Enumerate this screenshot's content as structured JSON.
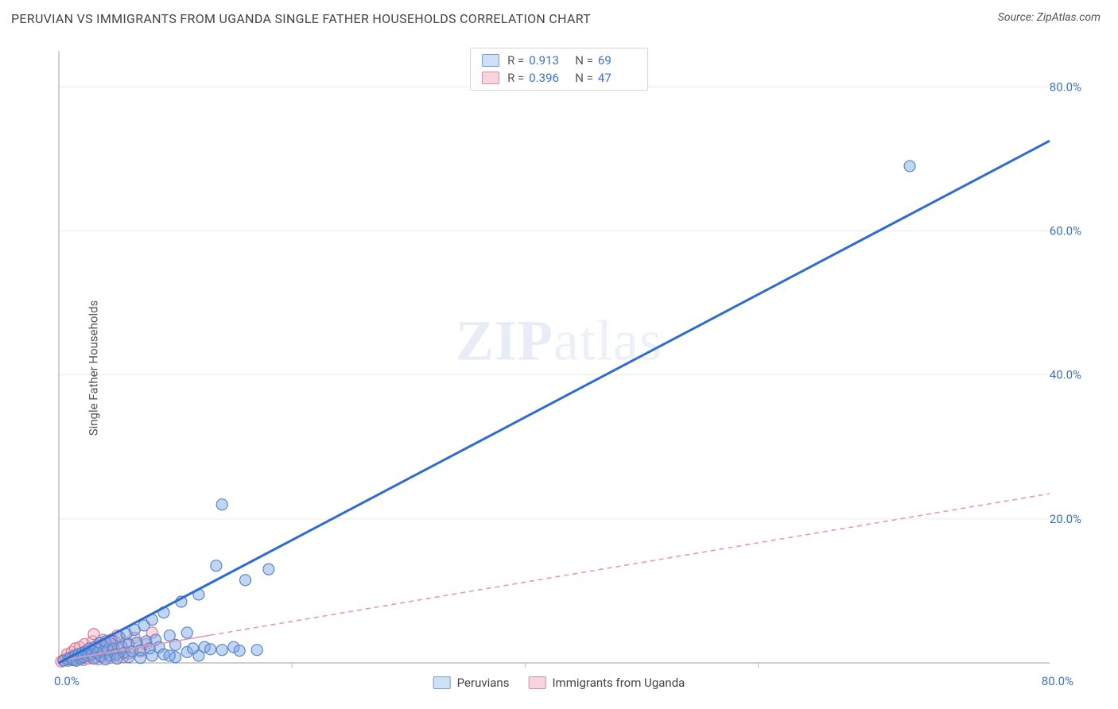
{
  "title": "PERUVIAN VS IMMIGRANTS FROM UGANDA SINGLE FATHER HOUSEHOLDS CORRELATION CHART",
  "source_prefix": "Source: ",
  "source_name": "ZipAtlas.com",
  "ylabel": "Single Father Households",
  "watermark_a": "ZIP",
  "watermark_b": "atlas",
  "chart": {
    "type": "scatter",
    "background_color": "#ffffff",
    "plot_border_color": "#d9d9d9",
    "grid_color": "#ececec",
    "axis_text_color": "#3a6fd8",
    "xlim": [
      0,
      85
    ],
    "ylim": [
      0,
      85
    ],
    "y_ticks": [
      20,
      40,
      60,
      80
    ],
    "y_tick_labels": [
      "20.0%",
      "40.0%",
      "60.0%",
      "80.0%"
    ],
    "x_origin_label": "0.0%",
    "x_max_label": "80.0%",
    "x_inner_ticks": [
      20,
      40,
      60
    ],
    "marker_radius": 7,
    "marker_stroke_width": 1.2,
    "series": [
      {
        "name": "Peruvians",
        "color_fill": "rgba(120,165,230,0.45)",
        "color_stroke": "#5a86c9",
        "swatch_fill": "#cfe0f7",
        "swatch_stroke": "#6f9bd8",
        "r_label": "R =",
        "r_value": "0.913",
        "n_label": "N =",
        "n_value": "69",
        "trend": {
          "x1": 0,
          "y1": 0,
          "x2": 85,
          "y2": 72.5,
          "stroke": "#2f6bd0",
          "width": 3,
          "dash": ""
        },
        "points": [
          [
            0.4,
            0.3
          ],
          [
            0.8,
            0.5
          ],
          [
            1.0,
            0.7
          ],
          [
            1.2,
            0.4
          ],
          [
            1.4,
            1.0
          ],
          [
            1.5,
            0.3
          ],
          [
            1.7,
            1.2
          ],
          [
            1.9,
            0.6
          ],
          [
            2.0,
            1.4
          ],
          [
            2.1,
            0.8
          ],
          [
            2.3,
            1.6
          ],
          [
            2.5,
            1.0
          ],
          [
            2.6,
            2.0
          ],
          [
            2.8,
            1.2
          ],
          [
            3.0,
            0.6
          ],
          [
            3.1,
            2.2
          ],
          [
            3.3,
            1.4
          ],
          [
            3.5,
            2.8
          ],
          [
            3.6,
            0.9
          ],
          [
            3.8,
            1.6
          ],
          [
            4.0,
            3.0
          ],
          [
            4.0,
            0.5
          ],
          [
            4.2,
            1.8
          ],
          [
            4.4,
            1.0
          ],
          [
            4.5,
            3.2
          ],
          [
            4.7,
            2.0
          ],
          [
            4.9,
            1.2
          ],
          [
            5.0,
            0.6
          ],
          [
            5.2,
            3.6
          ],
          [
            5.4,
            2.2
          ],
          [
            5.6,
            1.4
          ],
          [
            5.8,
            4.0
          ],
          [
            6.0,
            0.8
          ],
          [
            6.0,
            2.6
          ],
          [
            6.3,
            1.6
          ],
          [
            6.5,
            4.6
          ],
          [
            6.7,
            2.8
          ],
          [
            7.0,
            1.8
          ],
          [
            7.0,
            0.7
          ],
          [
            7.3,
            5.2
          ],
          [
            7.5,
            3.0
          ],
          [
            7.8,
            2.0
          ],
          [
            8.0,
            6.0
          ],
          [
            8.0,
            1.0
          ],
          [
            8.3,
            3.2
          ],
          [
            8.6,
            2.2
          ],
          [
            9.0,
            7.0
          ],
          [
            9.0,
            1.2
          ],
          [
            9.5,
            3.8
          ],
          [
            10.0,
            2.5
          ],
          [
            10.0,
            0.8
          ],
          [
            10.5,
            8.5
          ],
          [
            11.0,
            1.5
          ],
          [
            11.0,
            4.2
          ],
          [
            11.5,
            2.0
          ],
          [
            12.0,
            1.0
          ],
          [
            12.0,
            9.5
          ],
          [
            12.5,
            2.2
          ],
          [
            13.0,
            1.9
          ],
          [
            13.5,
            13.5
          ],
          [
            14.0,
            1.8
          ],
          [
            15.0,
            2.2
          ],
          [
            15.5,
            1.7
          ],
          [
            16.0,
            11.5
          ],
          [
            17.0,
            1.8
          ],
          [
            18.0,
            13.0
          ],
          [
            14.0,
            22.0
          ],
          [
            73.0,
            69.0
          ],
          [
            9.5,
            1.0
          ]
        ]
      },
      {
        "name": "Immigrants from Uganda",
        "color_fill": "rgba(245,170,190,0.45)",
        "color_stroke": "#d87a9a",
        "swatch_fill": "#f7d5de",
        "swatch_stroke": "#d98aa2",
        "r_label": "R =",
        "r_value": "0.396",
        "n_label": "N =",
        "n_value": "47",
        "trend": {
          "x1": 0,
          "y1": 0.3,
          "x2": 85,
          "y2": 23.5,
          "stroke": "#e59ab0",
          "width": 1.6,
          "dash": "6 5"
        },
        "trend_solid_until": 13,
        "points": [
          [
            0.2,
            0.2
          ],
          [
            0.4,
            0.4
          ],
          [
            0.6,
            0.6
          ],
          [
            0.7,
            1.2
          ],
          [
            0.8,
            0.3
          ],
          [
            1.0,
            0.8
          ],
          [
            1.1,
            1.5
          ],
          [
            1.2,
            0.4
          ],
          [
            1.3,
            1.0
          ],
          [
            1.4,
            2.0
          ],
          [
            1.5,
            0.5
          ],
          [
            1.6,
            1.2
          ],
          [
            1.7,
            0.7
          ],
          [
            1.8,
            2.2
          ],
          [
            1.9,
            0.9
          ],
          [
            2.0,
            1.4
          ],
          [
            2.1,
            0.4
          ],
          [
            2.2,
            2.6
          ],
          [
            2.3,
            1.0
          ],
          [
            2.4,
            1.6
          ],
          [
            2.5,
            0.6
          ],
          [
            2.6,
            2.0
          ],
          [
            2.8,
            1.2
          ],
          [
            2.9,
            3.0
          ],
          [
            3.0,
            0.8
          ],
          [
            3.1,
            1.5
          ],
          [
            3.3,
            2.4
          ],
          [
            3.4,
            0.5
          ],
          [
            3.5,
            1.8
          ],
          [
            3.7,
            1.0
          ],
          [
            3.8,
            3.2
          ],
          [
            4.0,
            1.3
          ],
          [
            4.2,
            2.6
          ],
          [
            4.4,
            0.7
          ],
          [
            4.6,
            1.6
          ],
          [
            4.8,
            3.0
          ],
          [
            5.0,
            1.0
          ],
          [
            5.2,
            2.0
          ],
          [
            5.5,
            0.8
          ],
          [
            5.8,
            2.8
          ],
          [
            6.0,
            1.3
          ],
          [
            6.5,
            3.5
          ],
          [
            7.0,
            1.6
          ],
          [
            7.5,
            2.6
          ],
          [
            8.0,
            4.2
          ],
          [
            5.0,
            3.8
          ],
          [
            3.0,
            4.0
          ]
        ]
      }
    ]
  },
  "legend_bottom": [
    {
      "label": "Peruvians",
      "fill": "#cfe0f7",
      "stroke": "#6f9bd8"
    },
    {
      "label": "Immigrants from Uganda",
      "fill": "#f7d5de",
      "stroke": "#d98aa2"
    }
  ]
}
